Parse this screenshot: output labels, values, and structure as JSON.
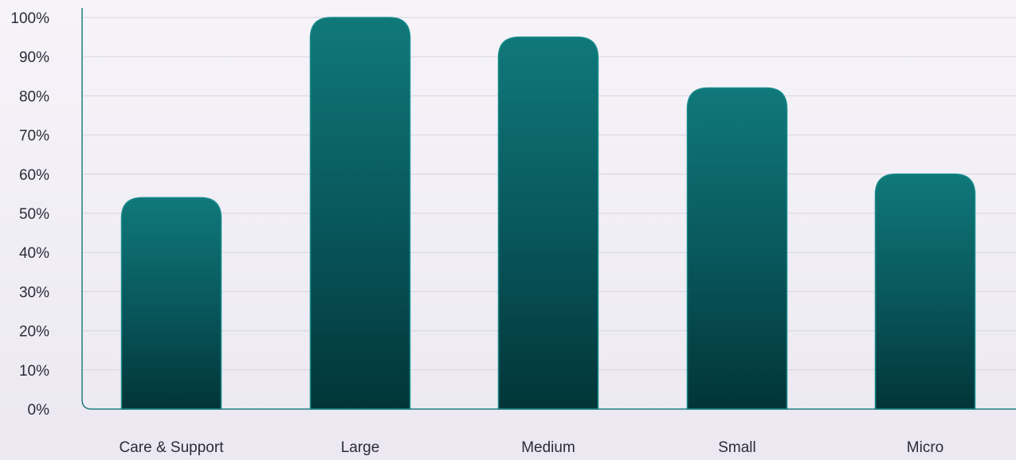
{
  "chart_data": {
    "type": "bar",
    "title": "",
    "xlabel": "",
    "ylabel": "",
    "categories": [
      "Care & Support",
      "Large",
      "Medium",
      "Small",
      "Micro"
    ],
    "values": [
      54,
      100,
      95,
      82,
      60
    ],
    "ylim": [
      0,
      100
    ],
    "y_ticks": [
      "0%",
      "10%",
      "20%",
      "30%",
      "40%",
      "50%",
      "60%",
      "70%",
      "80%",
      "90%",
      "100%"
    ],
    "y_tick_values": [
      0,
      10,
      20,
      30,
      40,
      50,
      60,
      70,
      80,
      90,
      100
    ],
    "grid": true,
    "legend": "none",
    "colors": {
      "bar_top": "#10787a",
      "bar_bottom": "#023538",
      "bar_outline": "#178a8a",
      "axis": "#1f8080",
      "gridline": "#d6d3de",
      "text": "#2b2b3a"
    }
  }
}
